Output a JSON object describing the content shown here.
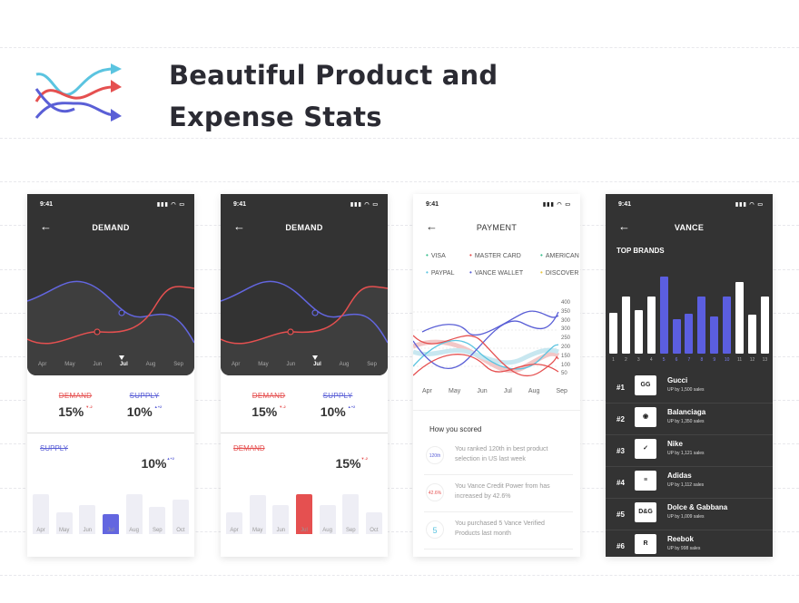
{
  "heading": {
    "line1": "Beautiful Product and",
    "line2": "Expense Stats"
  },
  "colors": {
    "red": "#e55050",
    "blue": "#5a5fd6",
    "cyan": "#5bc4e0",
    "dark": "#333333"
  },
  "phone1": {
    "time": "9:41",
    "title": "DEMAND",
    "months": [
      "Apr",
      "May",
      "Jun",
      "Jul",
      "Aug",
      "Sep"
    ],
    "selected_month": "Jul",
    "demand_label": "DEMAND",
    "demand_value": "15%",
    "demand_change": "▼-2",
    "supply_label": "SUPPLY",
    "supply_value": "10%",
    "supply_change": "▲+2",
    "bars_label": "SUPPLY",
    "bars_value": "10%",
    "bars_change": "▲+2",
    "bar_months": [
      "Apr",
      "May",
      "Jun",
      "Jul",
      "Aug",
      "Sep",
      "Oct"
    ],
    "bar_values": [
      0.72,
      0.4,
      0.52,
      0.36,
      0.72,
      0.5,
      0.62
    ],
    "bar_highlight_index": 3
  },
  "phone2": {
    "time": "9:41",
    "title": "DEMAND",
    "months": [
      "Apr",
      "May",
      "Jun",
      "Jul",
      "Aug",
      "Sep"
    ],
    "selected_month": "Jul",
    "demand_label": "DEMAND",
    "demand_value": "15%",
    "demand_change": "▼-2",
    "supply_label": "SUPPLY",
    "supply_value": "10%",
    "supply_change": "▲+2",
    "bars_label": "DEMAND",
    "bars_value": "15%",
    "bars_change": "▼-2",
    "bar_months": [
      "Apr",
      "May",
      "Jun",
      "Jul",
      "Aug",
      "Sep",
      "Oct"
    ],
    "bar_values": [
      0.4,
      0.7,
      0.52,
      0.72,
      0.52,
      0.72,
      0.4
    ],
    "bar_highlight_index": 3
  },
  "phone3": {
    "time": "9:41",
    "title": "PAYMENT",
    "legend": [
      {
        "label": "VISA",
        "color": "#3cc08f"
      },
      {
        "label": "MASTER CARD",
        "color": "#e55050"
      },
      {
        "label": "AMERICAN",
        "color": "#3cc08f"
      },
      {
        "label": "PAYPAL",
        "color": "#5bc4e0"
      },
      {
        "label": "VANCE WALLET",
        "color": "#5a5fd6"
      },
      {
        "label": "DISCOVER",
        "color": "#e8c640"
      }
    ],
    "y_ticks": [
      "400",
      "350",
      "300",
      "300",
      "250",
      "200",
      "150",
      "100",
      "50"
    ],
    "months": [
      "Apr",
      "May",
      "Jun",
      "Jul",
      "Aug",
      "Sep"
    ],
    "scored_title": "How you scored",
    "scores": [
      {
        "icon": "120th",
        "icon_color": "#5a5fd6",
        "text": "You ranked 120th in best product selection in US last week"
      },
      {
        "icon": "42.6%",
        "icon_color": "#e55050",
        "text": "You Vance Credit Power from has increased by 42.6%"
      },
      {
        "icon": "5",
        "icon_color": "#5bc4e0",
        "text": "You purchased 5 Vance Verified Products last month"
      }
    ]
  },
  "phone4": {
    "time": "9:41",
    "title": "VANCE",
    "section": "TOP BRANDS",
    "bar_labels": [
      "1",
      "2",
      "3",
      "4",
      "5",
      "6",
      "7",
      "8",
      "9",
      "10",
      "11",
      "12",
      "13"
    ],
    "bar_values": [
      0.5,
      0.7,
      0.53,
      0.7,
      0.95,
      0.42,
      0.49,
      0.7,
      0.46,
      0.7,
      0.88,
      0.48,
      0.7
    ],
    "highlight": [
      4,
      5,
      6,
      7,
      8,
      9
    ],
    "brands": [
      {
        "rank": "#1",
        "name": "Gucci",
        "sales": "UP by 1,500 sales",
        "logo": "GG"
      },
      {
        "rank": "#2",
        "name": "Balanciaga",
        "sales": "UP by 1,350 sales",
        "logo": "◉"
      },
      {
        "rank": "#3",
        "name": "Nike",
        "sales": "UP by 1,121 sales",
        "logo": "✓"
      },
      {
        "rank": "#4",
        "name": "Adidas",
        "sales": "UP by 1,112 sales",
        "logo": "≡"
      },
      {
        "rank": "#5",
        "name": "Dolce & Gabbana",
        "sales": "UP by 1,009 sales",
        "logo": "D&G"
      },
      {
        "rank": "#6",
        "name": "Reebok",
        "sales": "UP by 998 sales",
        "logo": "R"
      }
    ]
  }
}
